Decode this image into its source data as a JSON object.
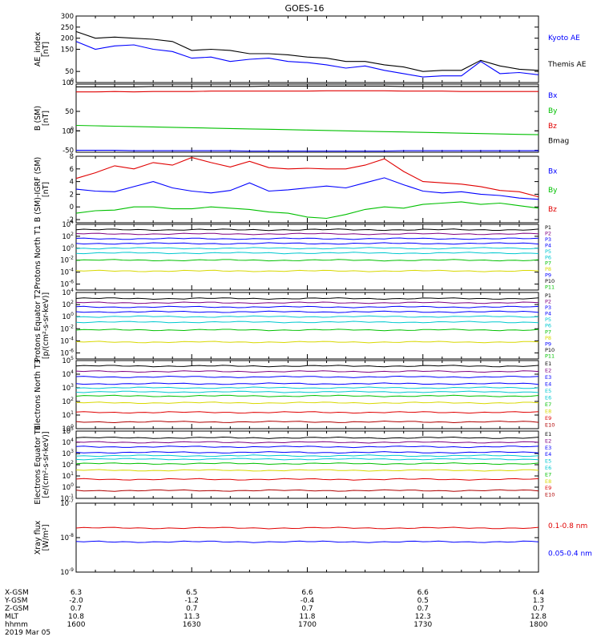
{
  "title": "GOES-16",
  "footer": {
    "row_labels": [
      "X-GSM",
      "Y-GSM",
      "Z-GSM",
      "MLT",
      "hhmm",
      "2019 Mar 05"
    ],
    "columns": [
      {
        "x_gsm": "6.3",
        "y_gsm": "-2.0",
        "z_gsm": "0.7",
        "mlt": "10.8",
        "hhmm": "1600"
      },
      {
        "x_gsm": "6.5",
        "y_gsm": "-1.2",
        "z_gsm": "0.7",
        "mlt": "11.3",
        "hhmm": "1630"
      },
      {
        "x_gsm": "6.6",
        "y_gsm": "-0.4",
        "z_gsm": "0.7",
        "mlt": "11.8",
        "hhmm": "1700"
      },
      {
        "x_gsm": "6.6",
        "y_gsm": "0.5",
        "z_gsm": "0.7",
        "mlt": "12.3",
        "hhmm": "1730"
      },
      {
        "x_gsm": "6.4",
        "y_gsm": "1.3",
        "z_gsm": "0.7",
        "mlt": "12.8",
        "hhmm": "1800"
      }
    ]
  },
  "colors": {
    "black": "#000000",
    "blue": "#0000ff",
    "red": "#e00000",
    "green": "#00c000",
    "yellow": "#d8d800",
    "cyan": "#00c8d0",
    "purple": "#800080",
    "darkred": "#b00000"
  },
  "chart_data": [
    {
      "type": "line",
      "ylabel": "AE_index [nT]",
      "ylim": [
        0,
        300
      ],
      "yticks": [
        "0",
        "50",
        "100",
        "150",
        "200",
        "250",
        "300"
      ],
      "x": [
        1600,
        1605,
        1610,
        1615,
        1620,
        1625,
        1630,
        1635,
        1640,
        1645,
        1650,
        1655,
        1700,
        1705,
        1710,
        1715,
        1720,
        1725,
        1730,
        1735,
        1740,
        1745,
        1750,
        1755,
        1800
      ],
      "legend": [
        "Kyoto AE",
        "Themis AE"
      ],
      "series": [
        {
          "name": "Kyoto AE",
          "color": "blue",
          "values": [
            185,
            150,
            165,
            170,
            150,
            140,
            110,
            115,
            95,
            105,
            110,
            95,
            90,
            80,
            65,
            75,
            55,
            40,
            25,
            30,
            30,
            95,
            40,
            45,
            35
          ]
        },
        {
          "name": "Themis AE",
          "color": "black",
          "values": [
            230,
            200,
            205,
            200,
            195,
            185,
            145,
            150,
            145,
            130,
            130,
            125,
            115,
            110,
            95,
            95,
            80,
            70,
            50,
            55,
            55,
            100,
            75,
            60,
            55
          ]
        }
      ]
    },
    {
      "type": "line",
      "ylabel": "B (SM) [nT]",
      "ylim": [
        -55,
        120
      ],
      "yticks": [
        "-50",
        "0",
        "50",
        "100"
      ],
      "legend": [
        "Bx",
        "By",
        "Bz",
        "Bmag"
      ],
      "series": [
        {
          "name": "Bx",
          "color": "blue",
          "values": [
            -50,
            -50,
            -50,
            -51,
            -51,
            -51,
            -51,
            -51,
            -51,
            -52,
            -52,
            -52,
            -52,
            -52,
            -52,
            -52,
            -52,
            -51,
            -51,
            -51,
            -51,
            -51,
            -51,
            -51,
            -51
          ]
        },
        {
          "name": "By",
          "color": "green",
          "values": [
            14,
            13,
            12,
            11,
            10,
            9,
            8,
            7,
            6,
            5,
            4,
            3,
            2,
            1,
            0,
            -1,
            -2,
            -3,
            -4,
            -5,
            -6,
            -7,
            -8,
            -9,
            -10
          ]
        },
        {
          "name": "Bz",
          "color": "red",
          "values": [
            100,
            100,
            101,
            100,
            101,
            101,
            101,
            102,
            102,
            102,
            102,
            102,
            102,
            103,
            103,
            103,
            103,
            102,
            102,
            102,
            101,
            101,
            101,
            101,
            101
          ]
        },
        {
          "name": "Bmag",
          "color": "black",
          "values": [
            113,
            113,
            113,
            113,
            114,
            114,
            114,
            114,
            114,
            114,
            115,
            115,
            115,
            115,
            115,
            115,
            115,
            114,
            114,
            114,
            114,
            114,
            114,
            114,
            114
          ]
        }
      ]
    },
    {
      "type": "line",
      "ylabel": "B (SM)-IGRF (SM) [nT]",
      "ylim": [
        -2.5,
        8
      ],
      "yticks": [
        "-2",
        "0",
        "2",
        "4",
        "6",
        "8"
      ],
      "legend": [
        "Bx",
        "By",
        "Bz"
      ],
      "series": [
        {
          "name": "Bx",
          "color": "blue",
          "values": [
            2.8,
            2.5,
            2.4,
            3.2,
            4.0,
            3.0,
            2.5,
            2.2,
            2.6,
            3.8,
            2.5,
            2.7,
            3.0,
            3.3,
            3.0,
            3.8,
            4.6,
            3.5,
            2.5,
            2.2,
            2.4,
            2.0,
            1.8,
            1.4,
            1.2
          ]
        },
        {
          "name": "By",
          "color": "green",
          "values": [
            -1.0,
            -0.6,
            -0.5,
            0.0,
            0.0,
            -0.3,
            -0.3,
            0.0,
            -0.2,
            -0.4,
            -0.8,
            -1.0,
            -1.6,
            -1.8,
            -1.2,
            -0.4,
            0.0,
            -0.2,
            0.4,
            0.6,
            0.8,
            0.4,
            0.6,
            0.2,
            -0.2
          ]
        },
        {
          "name": "Bz",
          "color": "red",
          "values": [
            4.5,
            5.4,
            6.5,
            6.0,
            7.0,
            6.6,
            7.8,
            7.0,
            6.3,
            7.2,
            6.2,
            6.0,
            6.1,
            6.0,
            6.0,
            6.6,
            7.6,
            5.6,
            4.0,
            3.8,
            3.6,
            3.2,
            2.6,
            2.4,
            1.6
          ]
        }
      ]
    },
    {
      "type": "line",
      "ylabel": "Protons North T1",
      "yscale": "log",
      "ylim": [
        -7,
        4
      ],
      "yticks": [
        "10-6",
        "10-4",
        "10-2",
        "100",
        "102",
        "104"
      ],
      "legend": [
        "P1",
        "P2",
        "P3",
        "P4",
        "P5",
        "P6",
        "P7",
        "P8",
        "P9",
        "P10",
        "P11"
      ],
      "series_log10": [
        {
          "name": "P1",
          "color": "black",
          "level": 3.1
        },
        {
          "name": "P2",
          "color": "purple",
          "level": 2.4
        },
        {
          "name": "P3",
          "color": "blue",
          "level": 1.6
        },
        {
          "name": "P4",
          "color": "blue",
          "level": 0.8
        },
        {
          "name": "P5",
          "color": "cyan",
          "level": 0.0
        },
        {
          "name": "P6",
          "color": "cyan",
          "level": -0.8
        },
        {
          "name": "P7",
          "color": "green",
          "level": -2.0
        },
        {
          "name": "P8",
          "color": "yellow",
          "level": -3.8
        }
      ]
    },
    {
      "type": "line",
      "ylabel": "Protons Equator T2 [p/(cm²-s-sr-keV)]",
      "yscale": "log",
      "ylim": [
        -7,
        4
      ],
      "yticks": [
        "10-6",
        "10-4",
        "10-2",
        "100",
        "102",
        "104"
      ],
      "legend": [
        "P1",
        "P2",
        "P3",
        "P4",
        "P5",
        "P6",
        "P7",
        "P8",
        "P9",
        "P10",
        "P11"
      ],
      "series_log10": [
        {
          "name": "P1",
          "color": "black",
          "level": 3.0
        },
        {
          "name": "P2",
          "color": "purple",
          "level": 2.3
        },
        {
          "name": "P3",
          "color": "blue",
          "level": 1.6
        },
        {
          "name": "P4",
          "color": "blue",
          "level": 0.8
        },
        {
          "name": "P5",
          "color": "cyan",
          "level": 0.0
        },
        {
          "name": "P6",
          "color": "cyan",
          "level": -0.9
        },
        {
          "name": "P7",
          "color": "green",
          "level": -2.2
        },
        {
          "name": "P8",
          "color": "yellow",
          "level": -4.2
        }
      ]
    },
    {
      "type": "line",
      "ylabel": "Electrons North T3",
      "yscale": "log",
      "ylim": [
        0,
        5
      ],
      "yticks": [
        "100",
        "101",
        "102",
        "103",
        "104",
        "105"
      ],
      "legend": [
        "E1",
        "E2",
        "E3",
        "E4",
        "E5",
        "E6",
        "E7",
        "E8",
        "E9",
        "E10"
      ],
      "series_log10": [
        {
          "name": "E1",
          "color": "black",
          "level": 4.6
        },
        {
          "name": "E2",
          "color": "purple",
          "level": 4.2
        },
        {
          "name": "E3",
          "color": "blue",
          "level": 3.8
        },
        {
          "name": "E4",
          "color": "blue",
          "level": 3.3
        },
        {
          "name": "E5",
          "color": "cyan",
          "level": 3.0
        },
        {
          "name": "E6",
          "color": "cyan",
          "level": 2.7
        },
        {
          "name": "E7",
          "color": "green",
          "level": 2.4
        },
        {
          "name": "E8",
          "color": "yellow",
          "level": 1.9
        },
        {
          "name": "E9",
          "color": "red",
          "level": 1.2
        },
        {
          "name": "E10",
          "color": "darkred",
          "level": 0.5
        }
      ]
    },
    {
      "type": "line",
      "ylabel": "Electrons Equator T4 [e/(cm²-s-sr-keV)]",
      "yscale": "log",
      "ylim": [
        -1,
        5
      ],
      "yticks": [
        "10-1",
        "100",
        "101",
        "102",
        "103",
        "104",
        "105"
      ],
      "legend": [
        "E1",
        "E2",
        "E3",
        "E4",
        "E5",
        "E6",
        "E7",
        "E8",
        "E9",
        "E10"
      ],
      "series_log10": [
        {
          "name": "E1",
          "color": "black",
          "level": 4.4
        },
        {
          "name": "E2",
          "color": "purple",
          "level": 4.0
        },
        {
          "name": "E3",
          "color": "blue",
          "level": 3.6
        },
        {
          "name": "E4",
          "color": "blue",
          "level": 3.1
        },
        {
          "name": "E5",
          "color": "cyan",
          "level": 2.8
        },
        {
          "name": "E6",
          "color": "cyan",
          "level": 2.5
        },
        {
          "name": "E7",
          "color": "green",
          "level": 2.1
        },
        {
          "name": "E8",
          "color": "yellow",
          "level": 1.5
        },
        {
          "name": "E9",
          "color": "red",
          "level": 0.7
        },
        {
          "name": "E10",
          "color": "darkred",
          "level": -0.3
        }
      ]
    },
    {
      "type": "line",
      "ylabel": "Xray flux [W/m²]",
      "yscale": "log",
      "ylim": [
        -9,
        -7
      ],
      "yticks": [
        "10-9",
        "10-8",
        "10-7"
      ],
      "legend": [
        "0.1-0.8 nm",
        "0.05-0.4 nm"
      ],
      "series_log10": [
        {
          "name": "0.1-0.8 nm",
          "color": "red",
          "level": -7.72
        },
        {
          "name": "0.05-0.4 nm",
          "color": "blue",
          "level": -8.12
        }
      ]
    }
  ]
}
